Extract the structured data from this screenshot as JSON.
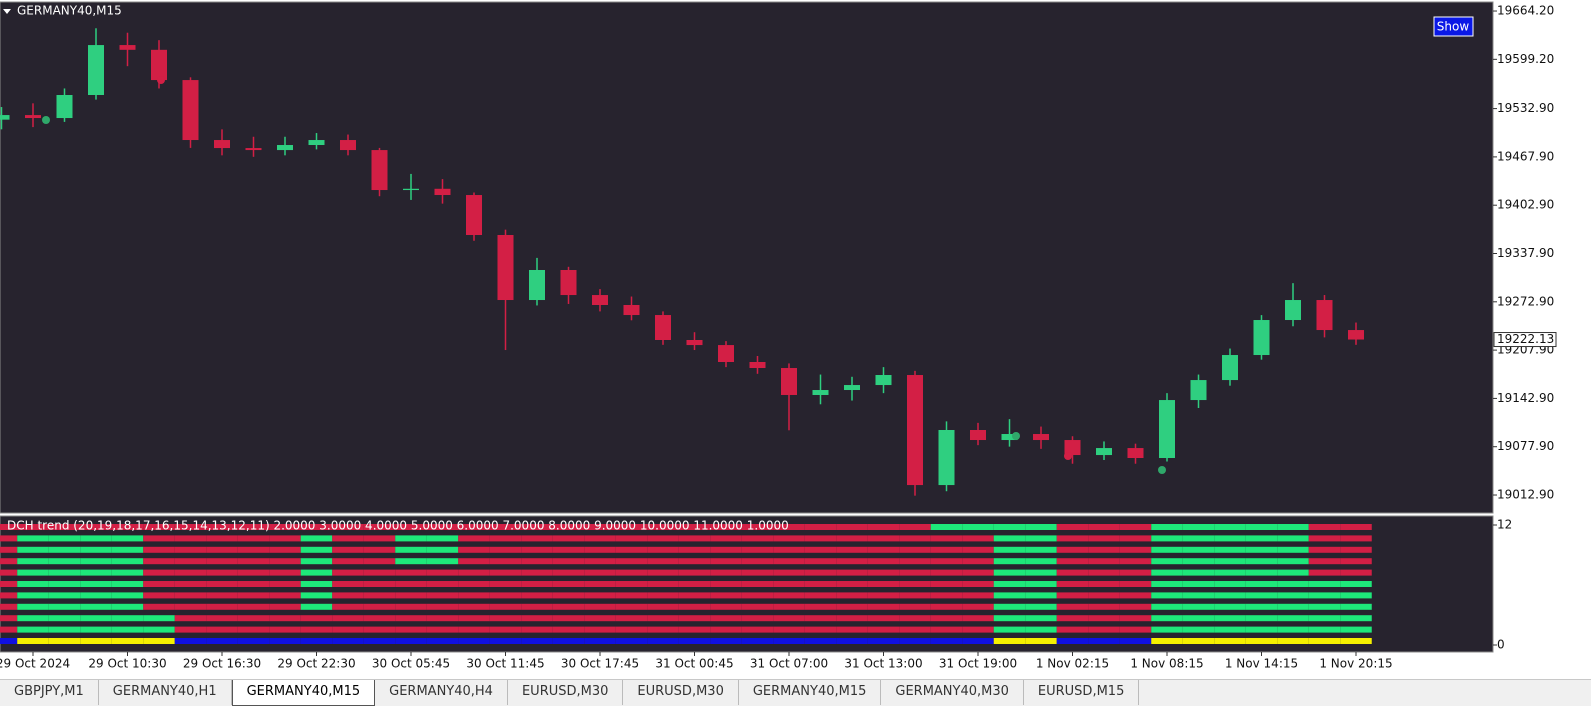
{
  "chart_data": [
    {
      "type": "candlestick",
      "title": "GERMANY40,M15",
      "categories": [
        null,
        "29 Oct 2024",
        null,
        null,
        "29 Oct 10:30",
        null,
        null,
        "29 Oct 16:30",
        null,
        null,
        "29 Oct 22:30",
        null,
        null,
        "30 Oct 05:45",
        null,
        null,
        "30 Oct 11:45",
        null,
        null,
        "30 Oct 17:45",
        null,
        null,
        "31 Oct 00:45",
        null,
        null,
        "31 Oct 07:00",
        null,
        null,
        "31 Oct 13:00",
        null,
        null,
        "31 Oct 19:00",
        null,
        null,
        "1 Nov 02:15",
        null,
        null,
        "1 Nov 08:15",
        null,
        null,
        "1 Nov 14:15",
        null,
        null,
        "1 Nov 20:15"
      ],
      "open": [
        19518,
        19524.2,
        19520.2,
        19551.2,
        19618.4,
        19612,
        19571.3,
        19490.6,
        19479.8,
        19477.1,
        19483.9,
        19490.6,
        19477.1,
        19423.3,
        19425,
        19416.6,
        19362.8,
        19275.3,
        19315.7,
        19282,
        19268.6,
        19255.1,
        19221.5,
        19214.7,
        19191.9,
        19183.8,
        19147.5,
        19154.2,
        19160.9,
        19174.4,
        19026.3,
        19100.4,
        19086.9,
        19095,
        19086.9,
        19066.7,
        19076.1,
        19062.7,
        19140.7,
        19167.6,
        19201.3,
        19248.4,
        19275.3,
        19234.9
      ],
      "high": [
        19535,
        19540,
        19560,
        19641,
        19635,
        19625,
        19575,
        19505,
        19495,
        19495,
        19500,
        19498,
        19480,
        19445,
        19438,
        19420,
        19370,
        19332,
        19320,
        19290,
        19280,
        19260,
        19232,
        19220,
        19200,
        19190,
        19175,
        19172,
        19185,
        19180,
        19112,
        19110,
        19115,
        19105,
        19092,
        19085,
        19082,
        19150,
        19175,
        19210,
        19255,
        19298,
        19282,
        19245
      ],
      "low": [
        19505,
        19508,
        19515,
        19545,
        19590,
        19560,
        19480,
        19470,
        19468,
        19470,
        19478,
        19470,
        19415,
        19410,
        19405,
        19355,
        19208,
        19268,
        19270,
        19260,
        19248,
        19215,
        19208,
        19185,
        19176,
        19100,
        19135,
        19140,
        19150,
        19012,
        19018,
        19080,
        19078,
        19075,
        19055,
        19060,
        19055,
        19058,
        19130,
        19160,
        19195,
        19240,
        19225,
        19215
      ],
      "close": [
        19524.2,
        19520.2,
        19551.2,
        19618.4,
        19612,
        19571.3,
        19490.6,
        19479.8,
        19477.1,
        19483.9,
        19490.6,
        19477.1,
        19423.3,
        19425,
        19416.6,
        19362.8,
        19275.3,
        19315.7,
        19282,
        19268.6,
        19255.1,
        19221.5,
        19214.7,
        19191.9,
        19183.8,
        19147.5,
        19154.2,
        19160.9,
        19174.4,
        19026.3,
        19100.4,
        19086.9,
        19095,
        19086.9,
        19066.7,
        19076.1,
        19062.7,
        19140.7,
        19167.6,
        19201.3,
        19248.4,
        19275.3,
        19234.9,
        19222.13
      ],
      "up_color": "#2fcf80",
      "down_color": "#d31f45",
      "ylim": [
        18988.7,
        19675
      ],
      "yticks": [
        {
          "value": 19664.2,
          "label": "19664.20"
        },
        {
          "value": 19599.2,
          "label": "19599.20"
        },
        {
          "value": 19532.9,
          "label": "19532.90"
        },
        {
          "value": 19467.9,
          "label": "19467.90"
        },
        {
          "value": 19402.9,
          "label": "19402.90"
        },
        {
          "value": 19337.9,
          "label": "19337.90"
        },
        {
          "value": 19272.9,
          "label": "19272.90"
        },
        {
          "value": 19207.9,
          "label": "19207.90"
        },
        {
          "value": 19142.9,
          "label": "19142.90"
        },
        {
          "value": 19077.9,
          "label": "19077.90"
        },
        {
          "value": 19012.9,
          "label": "19012.90"
        }
      ],
      "last_price": 19222.13
    },
    {
      "type": "state-rows",
      "title": "DCH trend (20,19,18,17,16,15,14,13,12,11) 2.0000 3.0000 4.0000 5.0000 6.0000 7.0000 8.0000 9.0000 10.0000 11.0000 1.0000",
      "ylim": [
        0,
        12
      ],
      "yticks": [
        0,
        12
      ],
      "rows": [
        {
          "colors": [
            "#d31f45",
            "#1ee87a"
          ],
          "states": [
            0,
            0,
            0,
            0,
            0,
            0,
            0,
            0,
            0,
            0,
            0,
            0,
            0,
            0,
            0,
            0,
            0,
            0,
            0,
            0,
            0,
            0,
            0,
            0,
            0,
            0,
            0,
            0,
            0,
            0,
            1,
            1,
            1,
            1,
            0,
            0,
            0,
            1,
            1,
            1,
            1,
            1,
            0,
            0
          ]
        },
        {
          "colors": [
            "#d31f45",
            "#1ee87a"
          ],
          "states": [
            0,
            1,
            1,
            1,
            1,
            0,
            0,
            0,
            0,
            0,
            1,
            0,
            0,
            1,
            1,
            0,
            0,
            0,
            0,
            0,
            0,
            0,
            0,
            0,
            0,
            0,
            0,
            0,
            0,
            0,
            0,
            0,
            1,
            1,
            0,
            0,
            0,
            1,
            1,
            1,
            1,
            1,
            0,
            0
          ]
        },
        {
          "colors": [
            "#d31f45",
            "#1ee87a"
          ],
          "states": [
            0,
            1,
            1,
            1,
            1,
            0,
            0,
            0,
            0,
            0,
            1,
            0,
            0,
            1,
            1,
            0,
            0,
            0,
            0,
            0,
            0,
            0,
            0,
            0,
            0,
            0,
            0,
            0,
            0,
            0,
            0,
            0,
            1,
            1,
            0,
            0,
            0,
            1,
            1,
            1,
            1,
            1,
            0,
            0
          ]
        },
        {
          "colors": [
            "#d31f45",
            "#1ee87a"
          ],
          "states": [
            0,
            1,
            1,
            1,
            1,
            0,
            0,
            0,
            0,
            0,
            1,
            0,
            0,
            1,
            1,
            0,
            0,
            0,
            0,
            0,
            0,
            0,
            0,
            0,
            0,
            0,
            0,
            0,
            0,
            0,
            0,
            0,
            1,
            1,
            0,
            0,
            0,
            1,
            1,
            1,
            1,
            1,
            0,
            0
          ]
        },
        {
          "colors": [
            "#d31f45",
            "#1ee87a"
          ],
          "states": [
            0,
            1,
            1,
            1,
            1,
            0,
            0,
            0,
            0,
            0,
            1,
            0,
            0,
            0,
            0,
            0,
            0,
            0,
            0,
            0,
            0,
            0,
            0,
            0,
            0,
            0,
            0,
            0,
            0,
            0,
            0,
            0,
            1,
            1,
            0,
            0,
            0,
            1,
            1,
            1,
            1,
            1,
            0,
            0
          ]
        },
        {
          "colors": [
            "#d31f45",
            "#1ee87a"
          ],
          "states": [
            0,
            1,
            1,
            1,
            1,
            0,
            0,
            0,
            0,
            0,
            1,
            0,
            0,
            0,
            0,
            0,
            0,
            0,
            0,
            0,
            0,
            0,
            0,
            0,
            0,
            0,
            0,
            0,
            0,
            0,
            0,
            0,
            1,
            1,
            0,
            0,
            0,
            1,
            1,
            1,
            1,
            1,
            1,
            1
          ]
        },
        {
          "colors": [
            "#d31f45",
            "#1ee87a"
          ],
          "states": [
            0,
            1,
            1,
            1,
            1,
            0,
            0,
            0,
            0,
            0,
            1,
            0,
            0,
            0,
            0,
            0,
            0,
            0,
            0,
            0,
            0,
            0,
            0,
            0,
            0,
            0,
            0,
            0,
            0,
            0,
            0,
            0,
            1,
            1,
            0,
            0,
            0,
            1,
            1,
            1,
            1,
            1,
            1,
            1
          ]
        },
        {
          "colors": [
            "#d31f45",
            "#1ee87a"
          ],
          "states": [
            0,
            1,
            1,
            1,
            1,
            0,
            0,
            0,
            0,
            0,
            1,
            0,
            0,
            0,
            0,
            0,
            0,
            0,
            0,
            0,
            0,
            0,
            0,
            0,
            0,
            0,
            0,
            0,
            0,
            0,
            0,
            0,
            1,
            1,
            0,
            0,
            0,
            1,
            1,
            1,
            1,
            1,
            1,
            1
          ]
        },
        {
          "colors": [
            "#d31f45",
            "#1ee87a"
          ],
          "states": [
            0,
            1,
            1,
            1,
            1,
            1,
            0,
            0,
            0,
            0,
            0,
            0,
            0,
            0,
            0,
            0,
            0,
            0,
            0,
            0,
            0,
            0,
            0,
            0,
            0,
            0,
            0,
            0,
            0,
            0,
            0,
            0,
            1,
            1,
            0,
            0,
            0,
            1,
            1,
            1,
            1,
            1,
            1,
            1
          ]
        },
        {
          "colors": [
            "#d31f45",
            "#1ee87a"
          ],
          "states": [
            0,
            1,
            1,
            1,
            1,
            1,
            0,
            0,
            0,
            0,
            0,
            0,
            0,
            0,
            0,
            0,
            0,
            0,
            0,
            0,
            0,
            0,
            0,
            0,
            0,
            0,
            0,
            0,
            0,
            0,
            0,
            0,
            1,
            1,
            0,
            0,
            0,
            1,
            1,
            1,
            1,
            1,
            1,
            1
          ]
        },
        {
          "colors": [
            "#1010e0",
            "#f5f000"
          ],
          "states": [
            0,
            1,
            1,
            1,
            1,
            1,
            0,
            0,
            0,
            0,
            0,
            0,
            0,
            0,
            0,
            0,
            0,
            0,
            0,
            0,
            0,
            0,
            0,
            0,
            0,
            0,
            0,
            0,
            0,
            0,
            0,
            0,
            1,
            1,
            0,
            0,
            0,
            1,
            1,
            1,
            1,
            1,
            1,
            1
          ]
        }
      ]
    }
  ],
  "button": "Show",
  "tabs": [
    "GBPJPY,M1",
    "GERMANY40,H1",
    "GERMANY40,M15",
    "GERMANY40,H4",
    "EURUSD,M30",
    "EURUSD,M30",
    "GERMANY40,M15",
    "GERMANY40,M30",
    "EURUSD,M15"
  ],
  "active_tab": 2
}
